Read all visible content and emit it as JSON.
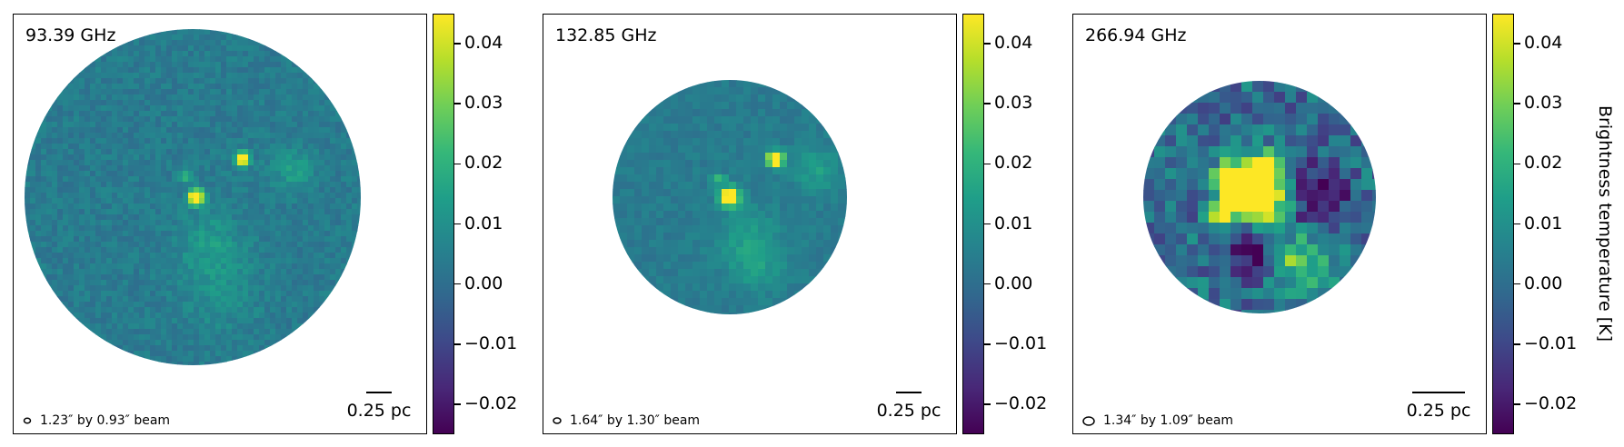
{
  "chart_data": {
    "type": "heatmap",
    "colormap": "viridis",
    "colorbar": {
      "label": "Brightness temperature [K]",
      "range": [
        -0.025,
        0.045
      ],
      "ticks": [
        "0.04",
        "0.03",
        "0.02",
        "0.01",
        "0.00",
        "−0.01",
        "−0.02"
      ],
      "tick_values": [
        0.04,
        0.03,
        0.02,
        0.01,
        0.0,
        -0.01,
        -0.02
      ]
    },
    "panels": [
      {
        "frequency": "93.39 GHz",
        "beam": "1.23″ by 0.93″ beam",
        "scalebar": "0.25 pc",
        "background_level": 0.004,
        "noise": 0.004,
        "beam_major": 1.23,
        "beam_minor": 0.93
      },
      {
        "frequency": "132.85 GHz",
        "beam": "1.64″ by 1.30″ beam",
        "scalebar": "0.25 pc",
        "background_level": 0.004,
        "noise": 0.003,
        "beam_major": 1.64,
        "beam_minor": 1.3
      },
      {
        "frequency": "266.94 GHz",
        "beam": "1.34″ by 1.09″ beam",
        "scalebar": "0.25 pc",
        "background_level": 0.0,
        "noise": 0.012,
        "beam_major": 1.34,
        "beam_minor": 1.09
      }
    ]
  }
}
